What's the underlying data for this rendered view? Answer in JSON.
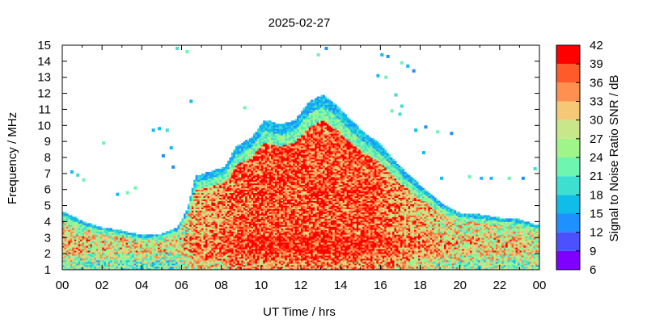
{
  "chart_data": {
    "type": "heatmap",
    "title": "2025-02-27",
    "xlabel": "UT Time / hrs",
    "ylabel": "Frequency / MHz",
    "colorbar_label": "Signal to Noise Ratio SNR / dB",
    "xlim": [
      0,
      24
    ],
    "ylim": [
      1,
      15
    ],
    "x_ticks": [
      "00",
      "02",
      "04",
      "06",
      "08",
      "10",
      "12",
      "14",
      "16",
      "18",
      "20",
      "22",
      "00"
    ],
    "y_ticks": [
      "1",
      "2",
      "3",
      "4",
      "5",
      "6",
      "7",
      "8",
      "9",
      "10",
      "11",
      "12",
      "13",
      "14",
      "15"
    ],
    "colorbar_ticks": [
      "6",
      "9",
      "12",
      "15",
      "18",
      "21",
      "24",
      "27",
      "30",
      "33",
      "36",
      "39",
      "42"
    ],
    "colorbar_levels": [
      {
        "from": 6,
        "to": 9,
        "color": "#7f00ff"
      },
      {
        "from": 9,
        "to": 12,
        "color": "#4d50ff"
      },
      {
        "from": 12,
        "to": 15,
        "color": "#1e90ff"
      },
      {
        "from": 15,
        "to": 18,
        "color": "#10bde8"
      },
      {
        "from": 18,
        "to": 21,
        "color": "#3de0d0"
      },
      {
        "from": 21,
        "to": 24,
        "color": "#6ef5b0"
      },
      {
        "from": 24,
        "to": 27,
        "color": "#a0f58a"
      },
      {
        "from": 27,
        "to": 30,
        "color": "#c8e68a"
      },
      {
        "from": 30,
        "to": 33,
        "color": "#f5c878"
      },
      {
        "from": 33,
        "to": 36,
        "color": "#ff9050"
      },
      {
        "from": 36,
        "to": 39,
        "color": "#ff5a2a"
      },
      {
        "from": 39,
        "to": 42,
        "color": "#ff0000"
      }
    ],
    "grid": false,
    "upper_envelope_mhz": [
      [
        0,
        4.6
      ],
      [
        1,
        4.0
      ],
      [
        2,
        3.6
      ],
      [
        3,
        3.4
      ],
      [
        4,
        3.1
      ],
      [
        5,
        3.2
      ],
      [
        5.8,
        3.6
      ],
      [
        6.3,
        4.8
      ],
      [
        6.7,
        6.8
      ],
      [
        7.5,
        7.1
      ],
      [
        8.2,
        7.4
      ],
      [
        8.7,
        8.6
      ],
      [
        9.5,
        9.2
      ],
      [
        10.2,
        10.3
      ],
      [
        11.0,
        10.0
      ],
      [
        11.7,
        10.3
      ],
      [
        12.4,
        11.4
      ],
      [
        13.1,
        11.9
      ],
      [
        13.8,
        11.2
      ],
      [
        14.5,
        10.3
      ],
      [
        15.2,
        9.5
      ],
      [
        16.0,
        8.8
      ],
      [
        16.6,
        7.9
      ],
      [
        17.4,
        6.9
      ],
      [
        18.3,
        5.9
      ],
      [
        19.1,
        5.1
      ],
      [
        20.0,
        4.5
      ],
      [
        21.0,
        4.4
      ],
      [
        22.0,
        4.2
      ],
      [
        23.0,
        4.1
      ],
      [
        24.0,
        3.7
      ]
    ],
    "lower_edge_mhz": 1.0,
    "peak_snr_db": 42,
    "sparse_points": [
      [
        0.4,
        7.2
      ],
      [
        0.7,
        7.0
      ],
      [
        1.0,
        6.7
      ],
      [
        2.0,
        9.0
      ],
      [
        2.7,
        5.8
      ],
      [
        3.2,
        5.9
      ],
      [
        3.6,
        6.2
      ],
      [
        4.5,
        9.8
      ],
      [
        4.8,
        9.9
      ],
      [
        5.2,
        9.8
      ],
      [
        5.4,
        8.7
      ],
      [
        5.0,
        8.2
      ],
      [
        5.5,
        7.5
      ],
      [
        5.7,
        14.9
      ],
      [
        6.2,
        14.7
      ],
      [
        6.4,
        11.6
      ],
      [
        9.1,
        11.2
      ],
      [
        12.8,
        14.5
      ],
      [
        13.2,
        14.9
      ],
      [
        16.0,
        14.5
      ],
      [
        16.3,
        14.4
      ],
      [
        15.8,
        13.2
      ],
      [
        16.2,
        13.1
      ],
      [
        17.0,
        14.0
      ],
      [
        17.3,
        13.8
      ],
      [
        17.6,
        13.5
      ],
      [
        16.7,
        12.0
      ],
      [
        17.0,
        11.3
      ],
      [
        16.5,
        11.0
      ],
      [
        16.9,
        10.8
      ],
      [
        17.7,
        9.8
      ],
      [
        18.2,
        10.0
      ],
      [
        18.8,
        9.7
      ],
      [
        19.5,
        9.6
      ],
      [
        18.1,
        8.4
      ],
      [
        19.0,
        6.8
      ],
      [
        20.4,
        6.9
      ],
      [
        21.0,
        6.8
      ],
      [
        21.5,
        6.8
      ],
      [
        22.4,
        6.8
      ],
      [
        23.1,
        6.8
      ],
      [
        23.7,
        7.4
      ]
    ]
  }
}
